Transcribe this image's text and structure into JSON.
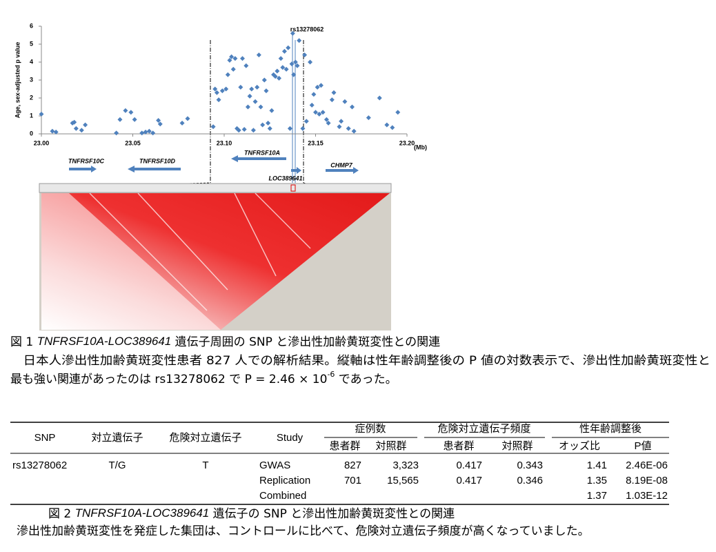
{
  "chart_data": {
    "type": "scatter",
    "xlabel": "(Mb)",
    "ylabel": "Age, sex-adjusted p value",
    "annotation": "rs13278062",
    "xlim": [
      23.0,
      23.2
    ],
    "ylim": [
      0,
      6
    ],
    "xticks": [
      {
        "value": 23.0,
        "label": "23.00"
      },
      23.05,
      {
        "value": 23.1,
        "label": "23.10"
      },
      23.15,
      {
        "value": 23.2,
        "label": "23.20"
      }
    ],
    "yticks": [
      0,
      1,
      2,
      3,
      4,
      5,
      6
    ],
    "color": "#4f81bd",
    "x": [
      23.0,
      23.006,
      23.008,
      23.017,
      23.018,
      23.019,
      23.022,
      23.024,
      23.041,
      23.043,
      23.046,
      23.049,
      23.051,
      23.055,
      23.057,
      23.059,
      23.061,
      23.064,
      23.065,
      23.077,
      23.08,
      23.094,
      23.095,
      23.096,
      23.097,
      23.099,
      23.101,
      23.102,
      23.103,
      23.104,
      23.105,
      23.106,
      23.107,
      23.108,
      23.109,
      23.11,
      23.111,
      23.112,
      23.113,
      23.114,
      23.115,
      23.116,
      23.117,
      23.118,
      23.119,
      23.12,
      23.121,
      23.122,
      23.123,
      23.124,
      23.125,
      23.126,
      23.127,
      23.128,
      23.129,
      23.13,
      23.131,
      23.132,
      23.133,
      23.134,
      23.135,
      23.136,
      23.137,
      23.138,
      23.139,
      23.14,
      23.1375,
      23.141,
      23.143,
      23.144,
      23.145,
      23.147,
      23.148,
      23.149,
      23.15,
      23.151,
      23.152,
      23.153,
      23.154,
      23.156,
      23.157,
      23.159,
      23.16,
      23.163,
      23.164,
      23.166,
      23.168,
      23.17,
      23.171,
      23.179,
      23.185,
      23.189,
      23.192,
      23.195
    ],
    "values": [
      1.1,
      0.15,
      0.1,
      0.6,
      0.65,
      0.3,
      0.2,
      0.5,
      0.05,
      0.8,
      1.3,
      1.2,
      0.8,
      0.05,
      0.1,
      0.15,
      0.05,
      0.75,
      0.55,
      0.6,
      0.85,
      0.4,
      2.5,
      2.3,
      1.9,
      2.4,
      2.5,
      3.3,
      4.1,
      4.3,
      3.6,
      4.2,
      0.3,
      0.2,
      2.6,
      4.2,
      0.25,
      3.8,
      1.5,
      2.1,
      2.5,
      0.2,
      1.8,
      2.6,
      4.4,
      1.5,
      0.5,
      3.0,
      2.4,
      0.6,
      0.3,
      1.3,
      3.3,
      3.2,
      3.5,
      3.1,
      4.2,
      3.7,
      4.6,
      3.6,
      4.8,
      0.3,
      3.9,
      3.3,
      4.0,
      3.8,
      5.6,
      5.2,
      0.3,
      4.4,
      0.7,
      4.0,
      1.6,
      2.2,
      1.2,
      2.6,
      1.1,
      2.7,
      1.2,
      0.8,
      0.6,
      1.9,
      2.3,
      0.4,
      0.7,
      1.8,
      0.3,
      1.5,
      0.15,
      0.9,
      2.0,
      0.5,
      0.35,
      1.2
    ],
    "genes": [
      "TNFRSF10C",
      "TNFRSF10D",
      "TNFRSF10A",
      "LOC389641",
      "CHMP7"
    ]
  },
  "figure1": {
    "label": "図 1 ",
    "gene": "TNFRSF10A-LOC389641",
    "title": " 遺伝子周囲の SNP と滲出性加齢黄斑変性との関連",
    "line1": "　日本人滲出性加齢黄斑変性患者 827 人での解析結果。縦軸は性年齢調整後の P 値の対数表示で、滲出性加齢黄斑変性と",
    "line2": "最も強い関連があったのは rs13278062 で P = 2.46 × 10",
    "sup": "-6",
    "line2_end": "  であった。"
  },
  "table": {
    "headers": [
      "SNP",
      "対立遺伝子",
      "危険対立遺伝子",
      "Study"
    ],
    "groups": [
      "症例数",
      "危険対立遺伝子頻度",
      "性年齢調整後"
    ],
    "subheaders": [
      "患者群",
      "対照群",
      "患者群",
      "対照群",
      "オッズ比",
      "P値"
    ],
    "rows": [
      [
        "rs13278062",
        "T/G",
        "T",
        "GWAS",
        "827",
        "3,323",
        "0.417",
        "0.343",
        "1.41",
        "2.46E-06"
      ],
      [
        null,
        null,
        null,
        "Replication",
        "701",
        "15,565",
        "0.417",
        "0.346",
        "1.35",
        "8.19E-08"
      ],
      [
        null,
        null,
        null,
        "Combined",
        null,
        null,
        null,
        null,
        "1.37",
        "1.03E-12"
      ]
    ]
  },
  "figure2": {
    "label": "図 2 ",
    "gene": "TNFRSF10A-LOC389641",
    "title": " 遺伝子の SNP と滲出性加齢黄斑変性との関連",
    "text": "滲出性加齢黄斑変性を発症した集団は、コントロールに比べて、危険対立遺伝子頻度が高くなっていました。"
  }
}
